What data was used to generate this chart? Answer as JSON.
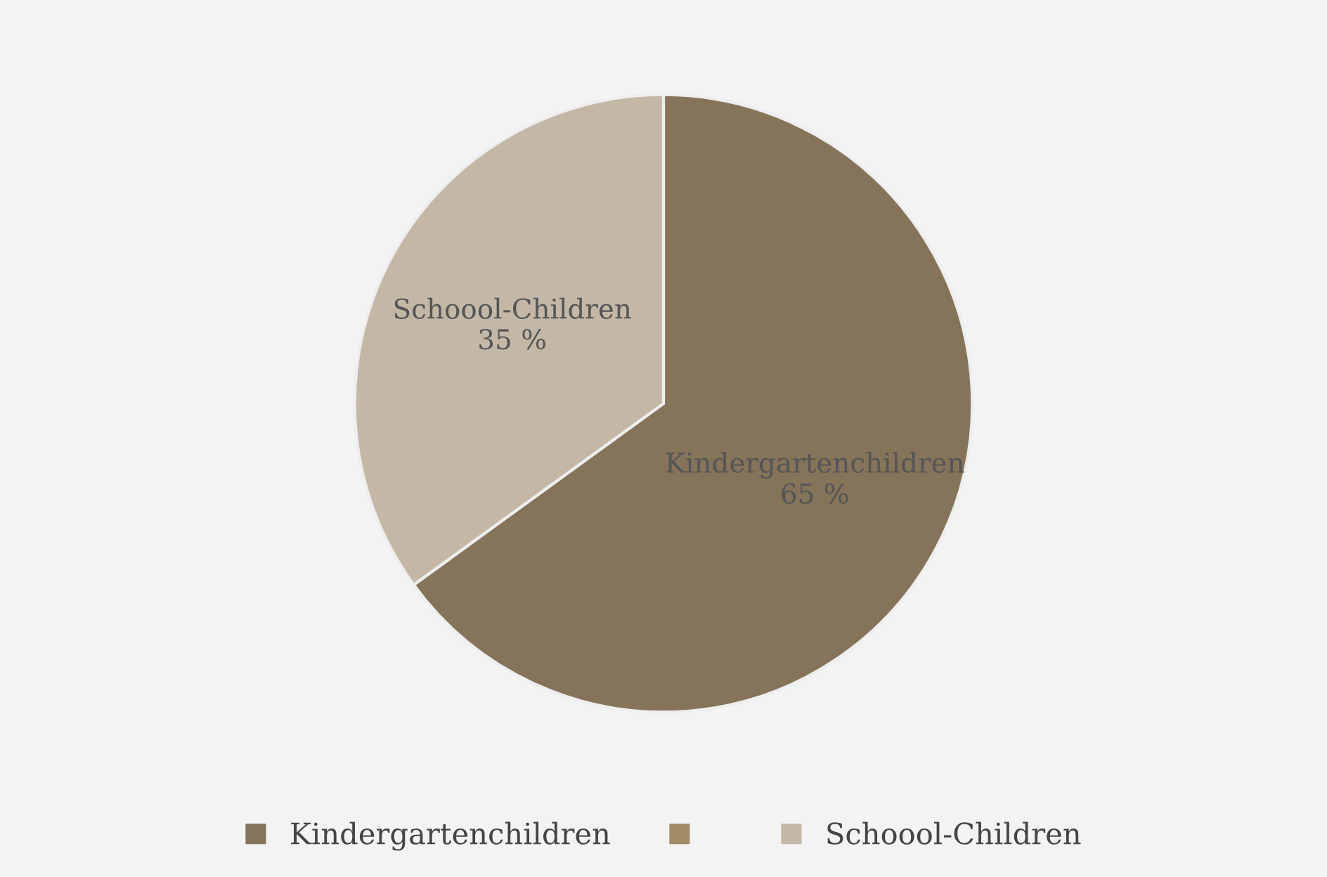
{
  "chart_data": {
    "type": "pie",
    "categories": [
      "Kindergartenchildren",
      null,
      "Schoool-Children"
    ],
    "values": [
      65,
      0,
      35
    ],
    "value_labels": [
      "65 %",
      null,
      "35 %"
    ],
    "colors": [
      "#85735a",
      "#a38c68",
      "#c4b7a6"
    ],
    "legend": "bottom"
  }
}
